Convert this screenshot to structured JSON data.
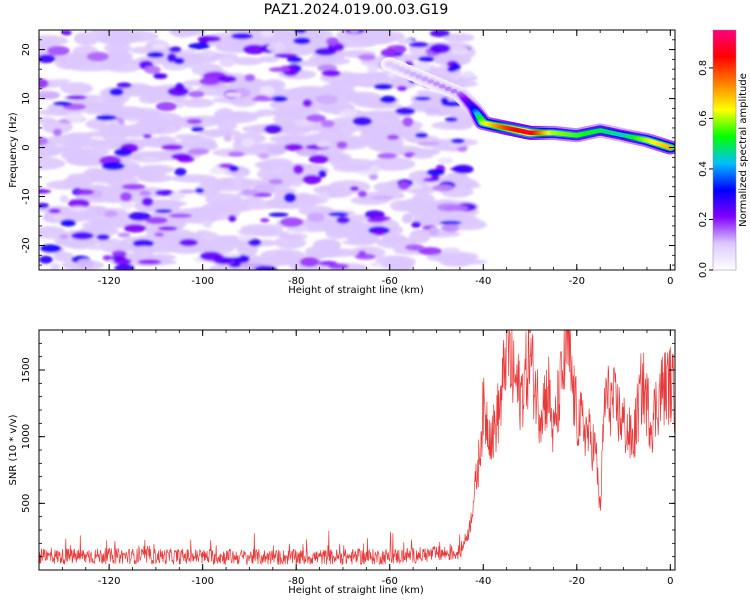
{
  "figure": {
    "title": "PAZ1.2024.019.00.03.G19"
  },
  "chart_data": [
    {
      "type": "heatmap",
      "xlabel": "Height of straight line (km)",
      "ylabel": "Frequency (Hz)",
      "xlim": [
        -135,
        1
      ],
      "ylim": [
        -25,
        24
      ],
      "xticks": [
        -120,
        -100,
        -80,
        -60,
        -40,
        -20,
        0
      ],
      "yticks": [
        -20,
        -10,
        0,
        10,
        20
      ],
      "colorbar": {
        "label": "Normalized spectral amplitude",
        "ticks": [
          0.0,
          0.2,
          0.4,
          0.6,
          0.8
        ],
        "range": [
          0,
          0.95
        ],
        "colors": [
          "#ffffff",
          "#dcc8ff",
          "#8000ff",
          "#0000ff",
          "#00bfff",
          "#00ff00",
          "#ffff00",
          "#ff8000",
          "#ff0000",
          "#ff0080"
        ]
      },
      "noise_region": {
        "x": [
          -135,
          -43
        ],
        "y": [
          -25,
          24
        ],
        "typical_amplitude": [
          0.05,
          0.3
        ]
      },
      "signal_ridge": {
        "x": [
          -60,
          -45,
          -42,
          -40,
          -35,
          -30,
          -25,
          -20,
          -15,
          -10,
          -5,
          0
        ],
        "frequency": [
          17,
          11,
          8,
          5,
          4,
          3,
          3,
          2.5,
          3.5,
          2.5,
          1.5,
          0
        ],
        "peak_amplitude": [
          0.1,
          0.15,
          0.3,
          0.6,
          0.8,
          0.9,
          0.6,
          0.55,
          0.5,
          0.45,
          0.6,
          0.7
        ]
      },
      "grid": false
    },
    {
      "type": "line",
      "xlabel": "Height of straight line (km)",
      "ylabel": "SNR (10 * v/v)",
      "xlim": [
        -135,
        1
      ],
      "ylim": [
        0,
        1800
      ],
      "xticks": [
        -120,
        -100,
        -80,
        -60,
        -40,
        -20,
        0
      ],
      "yticks": [
        500,
        1000,
        1500
      ],
      "line_color": "#e83a3a",
      "envelope": {
        "x": [
          -135,
          -120,
          -100,
          -80,
          -60,
          -45,
          -43,
          -41,
          -40,
          -38,
          -36,
          -35,
          -34,
          -32,
          -30,
          -28,
          -26,
          -25,
          -24,
          -22,
          -21,
          -20,
          -18,
          -16,
          -15,
          -14,
          -12,
          -10,
          -8,
          -6,
          -4,
          -2,
          0,
          1
        ],
        "y": [
          100,
          105,
          100,
          95,
          100,
          130,
          300,
          800,
          1200,
          1000,
          1300,
          1750,
          1500,
          1300,
          1600,
          1200,
          1350,
          1000,
          1250,
          1700,
          1400,
          1150,
          1050,
          900,
          450,
          1300,
          1250,
          1100,
          950,
          1400,
          1100,
          1350,
          1400,
          1300
        ]
      },
      "noise_amplitude": 60,
      "grid": false
    }
  ]
}
